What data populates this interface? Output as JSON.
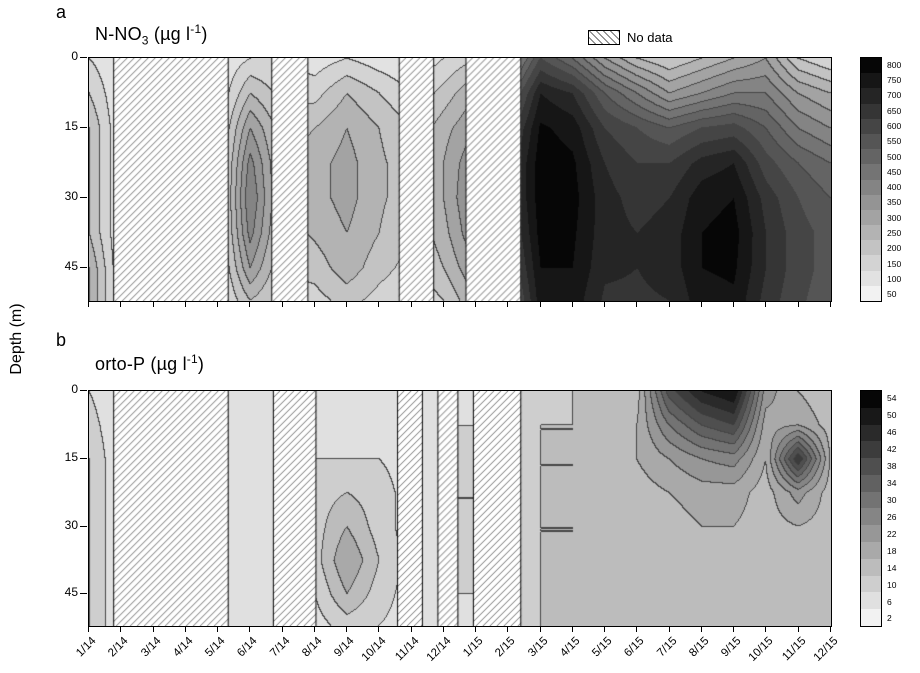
{
  "figure": {
    "ylabel": "Depth (m)",
    "legend": {
      "no_data_label": "No data"
    },
    "panel_a": {
      "letter": "a",
      "title": {
        "base": "N-NO",
        "sub": "3",
        "mid": " (µg l",
        "sup": "-1",
        "end": ")"
      }
    },
    "panel_b": {
      "letter": "b",
      "title": {
        "base": "orto-P",
        "sub": "",
        "mid": " (µg l",
        "sup": "-1",
        "end": ")"
      }
    }
  },
  "chart_data": [
    {
      "type": "heatmap",
      "panel": "a",
      "title": "N-NO3 (µg l-1)",
      "units": "µg l-1",
      "x_labels": [
        "1/14",
        "2/14",
        "3/14",
        "4/14",
        "5/14",
        "6/14",
        "7/14",
        "8/14",
        "9/14",
        "10/14",
        "11/14",
        "12/14",
        "1/15",
        "2/15",
        "3/15",
        "4/15",
        "5/15",
        "6/15",
        "7/15",
        "8/15",
        "9/15",
        "10/15",
        "11/15",
        "12/15"
      ],
      "y_label": "Depth (m)",
      "y_ticks": [
        0,
        15,
        30,
        45
      ],
      "y_range": [
        0,
        52
      ],
      "depths": [
        0,
        7.5,
        15,
        22.5,
        30,
        37.5,
        45,
        52
      ],
      "levels": [
        50,
        100,
        150,
        200,
        250,
        300,
        350,
        400,
        450,
        500,
        550,
        600,
        650,
        700,
        750,
        800
      ],
      "colorbar": {
        "min": 50,
        "max": 800,
        "step": 50,
        "position": "right"
      },
      "no_data_ranges": [
        [
          0.75,
          4.33
        ],
        [
          5.65,
          6.8
        ],
        [
          9.6,
          10.7
        ],
        [
          11.67,
          13.4
        ]
      ],
      "values": [
        [
          150,
          100,
          100,
          100,
          100,
          150,
          150,
          120,
          150,
          120,
          100,
          150,
          200,
          350,
          600,
          500,
          350,
          250,
          200,
          250,
          300,
          350,
          200,
          150
        ],
        [
          200,
          100,
          100,
          100,
          100,
          250,
          180,
          180,
          250,
          200,
          150,
          220,
          300,
          500,
          750,
          700,
          550,
          450,
          350,
          400,
          450,
          450,
          350,
          300
        ],
        [
          250,
          100,
          100,
          100,
          120,
          350,
          220,
          250,
          300,
          250,
          200,
          280,
          350,
          600,
          810,
          780,
          650,
          600,
          550,
          600,
          620,
          550,
          450,
          400
        ],
        [
          250,
          100,
          100,
          100,
          120,
          420,
          230,
          280,
          320,
          260,
          220,
          300,
          400,
          650,
          830,
          810,
          700,
          650,
          650,
          720,
          750,
          620,
          550,
          500
        ],
        [
          250,
          100,
          100,
          100,
          120,
          450,
          230,
          280,
          320,
          260,
          220,
          300,
          420,
          650,
          830,
          820,
          720,
          680,
          700,
          780,
          800,
          680,
          600,
          550
        ],
        [
          250,
          100,
          100,
          100,
          120,
          420,
          220,
          260,
          300,
          250,
          200,
          280,
          400,
          620,
          820,
          810,
          720,
          700,
          720,
          800,
          820,
          700,
          620,
          580
        ],
        [
          300,
          100,
          100,
          100,
          120,
          350,
          200,
          220,
          280,
          220,
          180,
          250,
          350,
          580,
          800,
          800,
          710,
          700,
          720,
          800,
          810,
          700,
          620,
          580
        ],
        [
          300,
          100,
          100,
          100,
          120,
          250,
          180,
          180,
          220,
          180,
          150,
          200,
          300,
          520,
          780,
          780,
          690,
          690,
          700,
          780,
          790,
          680,
          610,
          570
        ]
      ]
    },
    {
      "type": "heatmap",
      "panel": "b",
      "title": "orto-P (µg l-1)",
      "units": "µg l-1",
      "x_labels": [
        "1/14",
        "2/14",
        "3/14",
        "4/14",
        "5/14",
        "6/14",
        "7/14",
        "8/14",
        "9/14",
        "10/14",
        "11/14",
        "12/14",
        "1/15",
        "2/15",
        "3/15",
        "4/15",
        "5/15",
        "6/15",
        "7/15",
        "8/15",
        "9/15",
        "10/15",
        "11/15",
        "12/15"
      ],
      "y_label": "Depth (m)",
      "y_ticks": [
        0,
        15,
        30,
        45
      ],
      "y_range": [
        0,
        52
      ],
      "depths": [
        0,
        7.5,
        15,
        22.5,
        30,
        37.5,
        45,
        52
      ],
      "levels": [
        2,
        6,
        10,
        14,
        18,
        22,
        26,
        30,
        34,
        38,
        42,
        46,
        50,
        54
      ],
      "colorbar": {
        "min": 2,
        "max": 54,
        "step": 4,
        "position": "right"
      },
      "no_data_ranges": [
        [
          0.75,
          4.33
        ],
        [
          5.7,
          7.05
        ],
        [
          9.55,
          10.35
        ],
        [
          10.8,
          11.45
        ],
        [
          11.9,
          13.4
        ]
      ],
      "values": [
        [
          10,
          6,
          6,
          6,
          6,
          6,
          6,
          6,
          6,
          6,
          8,
          8,
          10,
          12,
          12,
          14,
          14,
          16,
          40,
          50,
          54,
          24,
          18,
          14
        ],
        [
          12,
          6,
          6,
          6,
          8,
          8,
          6,
          8,
          8,
          8,
          8,
          10,
          10,
          12,
          14,
          14,
          16,
          18,
          30,
          38,
          42,
          20,
          22,
          16
        ],
        [
          14,
          6,
          6,
          6,
          8,
          10,
          8,
          10,
          10,
          10,
          8,
          10,
          10,
          12,
          14,
          14,
          16,
          18,
          22,
          26,
          28,
          18,
          46,
          18
        ],
        [
          14,
          6,
          6,
          6,
          8,
          10,
          8,
          12,
          14,
          12,
          8,
          10,
          10,
          12,
          14,
          14,
          16,
          16,
          18,
          20,
          20,
          16,
          24,
          16
        ],
        [
          14,
          6,
          6,
          6,
          8,
          10,
          8,
          12,
          18,
          12,
          8,
          10,
          10,
          12,
          14,
          14,
          16,
          16,
          16,
          18,
          18,
          16,
          18,
          16
        ],
        [
          14,
          6,
          6,
          6,
          8,
          10,
          8,
          12,
          22,
          14,
          8,
          10,
          10,
          12,
          14,
          14,
          16,
          16,
          16,
          16,
          16,
          16,
          16,
          16
        ],
        [
          14,
          6,
          6,
          6,
          8,
          8,
          8,
          10,
          18,
          12,
          8,
          10,
          10,
          12,
          14,
          14,
          16,
          16,
          16,
          16,
          16,
          16,
          16,
          16
        ],
        [
          14,
          6,
          6,
          6,
          6,
          6,
          6,
          8,
          12,
          10,
          8,
          8,
          10,
          12,
          14,
          14,
          16,
          16,
          16,
          16,
          16,
          16,
          16,
          16
        ]
      ]
    }
  ]
}
